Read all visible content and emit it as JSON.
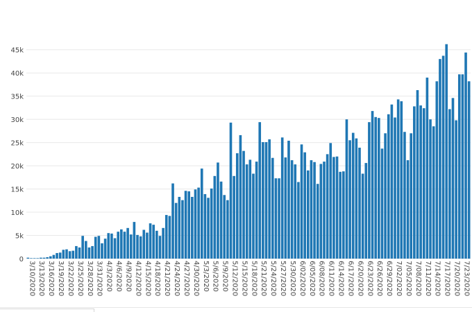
{
  "chart_data": {
    "type": "bar",
    "title": "",
    "xlabel": "",
    "ylabel": "",
    "ylim": [
      0,
      47500
    ],
    "y_ticks": [
      {
        "value": 0,
        "label": "0"
      },
      {
        "value": 5000,
        "label": "5k"
      },
      {
        "value": 10000,
        "label": "10k"
      },
      {
        "value": 15000,
        "label": "15k"
      },
      {
        "value": 20000,
        "label": "20k"
      },
      {
        "value": 25000,
        "label": "25k"
      },
      {
        "value": 30000,
        "label": "30k"
      },
      {
        "value": 35000,
        "label": "35k"
      },
      {
        "value": 40000,
        "label": "40k"
      },
      {
        "value": 45000,
        "label": "45k"
      }
    ],
    "x_start_label": "3/10/2020",
    "x_tick_every": 3,
    "x_tick_labels": [
      "3/10/2020",
      "3/13/2020",
      "3/16/2020",
      "3/19/2020",
      "3/22/2020",
      "3/25/2020",
      "3/28/2020",
      "3/31/2020",
      "4/3/2020",
      "4/6/2020",
      "4/9/2020",
      "4/12/2020",
      "4/15/2020",
      "4/18/2020",
      "4/21/2020",
      "4/24/2020",
      "4/27/2020",
      "4/30/2020",
      "5/3/2020",
      "5/6/2020",
      "5/9/2020",
      "5/12/2020",
      "5/15/2020",
      "5/18/2020",
      "5/21/2020",
      "5/24/2020",
      "5/27/2020",
      "5/30/2020",
      "6/02/2020",
      "6/05/2020",
      "6/08/2020",
      "6/11/2020",
      "6/14/2020",
      "6/17/2020",
      "6/20/2020",
      "6/23/2020",
      "6/26/2020",
      "6/29/2020",
      "7/02/2020",
      "7/05/2020",
      "7/08/2020",
      "7/11/2020",
      "7/14/2020",
      "7/17/2020",
      "7/20/2020",
      "7/23/2020"
    ],
    "colors": {
      "bar": "#1f77b4",
      "grid": "#e8e8e8",
      "text": "#444444"
    },
    "grid": true,
    "legend": "none",
    "values": [
      200,
      100,
      100,
      100,
      200,
      200,
      300,
      500,
      800,
      1200,
      1300,
      1900,
      2000,
      1600,
      1700,
      2700,
      2400,
      4900,
      3800,
      2400,
      2700,
      4700,
      4900,
      3300,
      4300,
      5500,
      5400,
      4400,
      5800,
      6300,
      5800,
      6600,
      5200,
      7900,
      5100,
      4800,
      6200,
      5600,
      7600,
      7300,
      6000,
      4900,
      6600,
      9400,
      9200,
      16200,
      12000,
      13300,
      12600,
      14600,
      14500,
      13300,
      14900,
      15300,
      19400,
      13900,
      13100,
      15100,
      17800,
      20700,
      16600,
      13700,
      12600,
      29300,
      17800,
      22700,
      26600,
      23200,
      20300,
      21300,
      18300,
      20900,
      29400,
      25100,
      25100,
      25700,
      21700,
      17300,
      17300,
      26100,
      21800,
      25400,
      21200,
      20300,
      16500,
      24600,
      22900,
      19000,
      21200,
      20800,
      16100,
      20400,
      20900,
      22500,
      24900,
      21900,
      22000,
      18700,
      18800,
      30000,
      25500,
      27100,
      25900,
      23900,
      18300,
      20600,
      29400,
      31800,
      30500,
      30300,
      23700,
      27000,
      31100,
      33200,
      30400,
      34300,
      33900,
      27300,
      21200,
      27000,
      32800,
      36300,
      33000,
      32400,
      39000,
      30000,
      28500,
      38200,
      43000,
      43700,
      46200,
      32200,
      34600,
      29800,
      39700,
      39700,
      44400,
      38200
    ]
  }
}
